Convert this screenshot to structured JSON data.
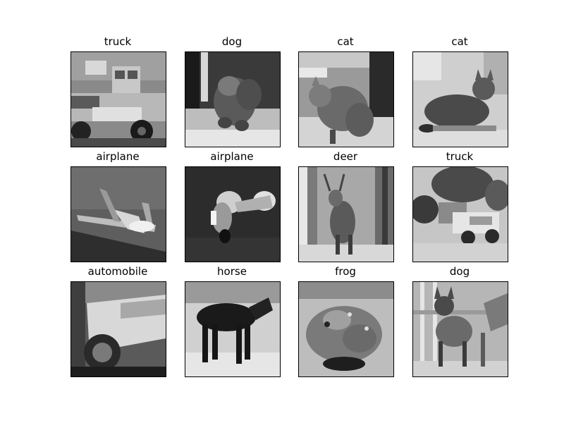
{
  "images": [
    {
      "label": "truck",
      "picture": "grayscale-photo-of-truck"
    },
    {
      "label": "dog",
      "picture": "grayscale-photo-of-dog"
    },
    {
      "label": "cat",
      "picture": "grayscale-photo-of-cat"
    },
    {
      "label": "cat",
      "picture": "grayscale-photo-of-cat"
    },
    {
      "label": "airplane",
      "picture": "grayscale-photo-of-airplane"
    },
    {
      "label": "airplane",
      "picture": "grayscale-photo-of-airplane"
    },
    {
      "label": "deer",
      "picture": "grayscale-photo-of-deer"
    },
    {
      "label": "truck",
      "picture": "grayscale-photo-of-truck"
    },
    {
      "label": "automobile",
      "picture": "grayscale-photo-of-automobile"
    },
    {
      "label": "horse",
      "picture": "grayscale-photo-of-horse"
    },
    {
      "label": "frog",
      "picture": "grayscale-photo-of-frog"
    },
    {
      "label": "dog",
      "picture": "grayscale-photo-of-dog"
    }
  ]
}
